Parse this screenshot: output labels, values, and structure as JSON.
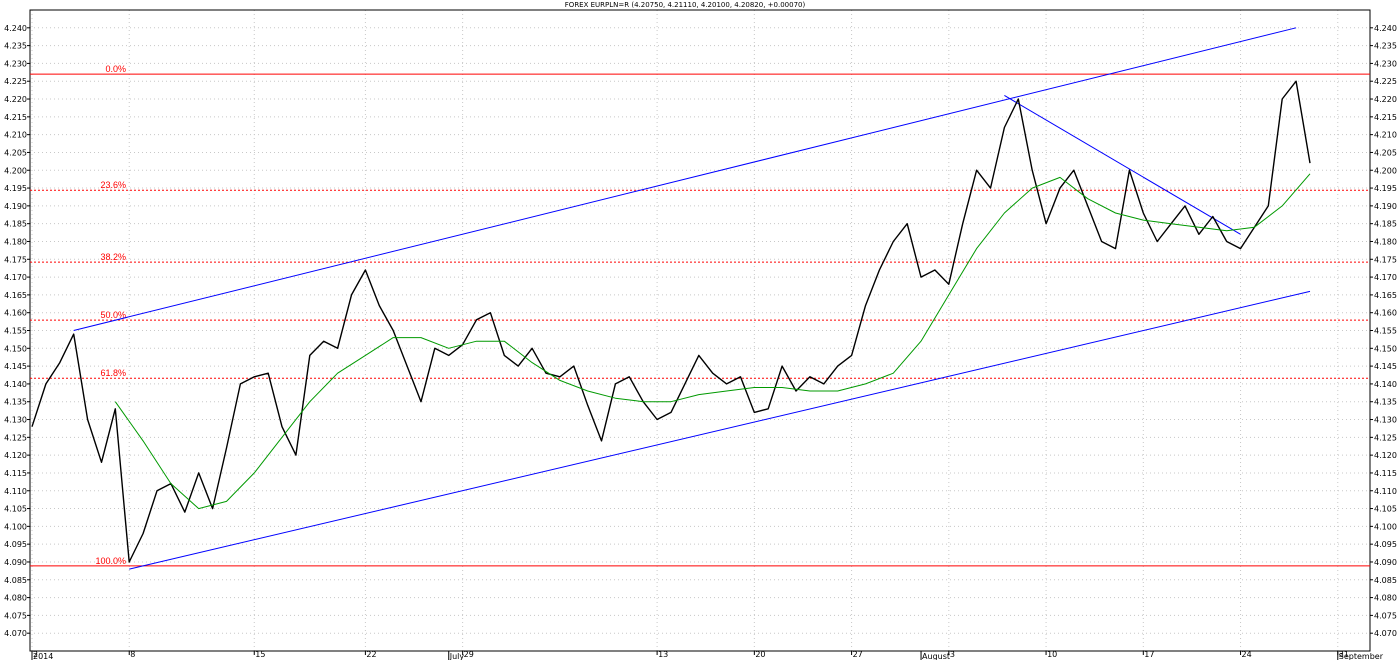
{
  "chart_data": {
    "type": "line",
    "title": "FOREX EURPLN=R (4.20750, 4.21110, 4.20100, 4.20820, +0.00070)",
    "ylim": [
      4.065,
      4.245
    ],
    "yticks": [
      "4.070",
      "4.075",
      "4.080",
      "4.085",
      "4.090",
      "4.095",
      "4.100",
      "4.105",
      "4.110",
      "4.115",
      "4.120",
      "4.125",
      "4.130",
      "4.135",
      "4.140",
      "4.145",
      "4.150",
      "4.155",
      "4.160",
      "4.165",
      "4.170",
      "4.175",
      "4.180",
      "4.185",
      "4.190",
      "4.195",
      "4.200",
      "4.205",
      "4.210",
      "4.215",
      "4.220",
      "4.225",
      "4.230",
      "4.235",
      "4.240"
    ],
    "xlim": [
      0,
      92
    ],
    "xticks": [
      {
        "x": 0,
        "label": "2"
      },
      {
        "x": 7,
        "label": "8"
      },
      {
        "x": 16,
        "label": "15"
      },
      {
        "x": 24,
        "label": "22"
      },
      {
        "x": 31,
        "label": "29"
      },
      {
        "x": 45,
        "label": "13"
      },
      {
        "x": 52,
        "label": "20"
      },
      {
        "x": 59,
        "label": "27"
      },
      {
        "x": 66,
        "label": "3"
      },
      {
        "x": 73,
        "label": "10"
      },
      {
        "x": 80,
        "label": "17"
      },
      {
        "x": 87,
        "label": "24"
      },
      {
        "x": 94,
        "label": "31"
      }
    ],
    "xlabels_secondary": [
      {
        "x": 0,
        "label": "2014"
      },
      {
        "x": 30,
        "label": "July"
      },
      {
        "x": 64,
        "label": "August"
      },
      {
        "x": 94,
        "label": "September"
      }
    ],
    "grid": true,
    "series": [
      {
        "color": "#000000",
        "x": [
          0,
          1,
          2,
          3,
          4,
          5,
          6,
          7,
          8,
          9,
          10,
          11,
          12,
          13,
          14,
          15,
          16,
          17,
          18,
          19,
          20,
          21,
          22,
          23,
          24,
          25,
          26,
          27,
          28,
          29,
          30,
          31,
          32,
          33,
          34,
          35,
          36,
          37,
          38,
          39,
          40,
          41,
          42,
          43,
          44,
          45,
          46,
          47,
          48,
          49,
          50,
          51,
          52,
          53,
          54,
          55,
          56,
          57,
          58,
          59,
          60,
          61,
          62,
          63,
          64,
          65,
          66,
          67,
          68,
          69,
          70,
          71,
          72,
          73,
          74,
          75,
          76,
          77,
          78,
          79,
          80,
          81,
          82,
          83,
          84,
          85,
          86,
          87,
          88,
          89,
          90,
          91,
          92
        ],
        "y": [
          4.128,
          4.14,
          4.146,
          4.154,
          4.13,
          4.118,
          4.133,
          4.09,
          4.098,
          4.11,
          4.112,
          4.104,
          4.115,
          4.105,
          4.122,
          4.14,
          4.142,
          4.143,
          4.128,
          4.12,
          4.148,
          4.152,
          4.15,
          4.165,
          4.172,
          4.162,
          4.155,
          4.145,
          4.135,
          4.15,
          4.148,
          4.151,
          4.158,
          4.16,
          4.148,
          4.145,
          4.15,
          4.143,
          4.142,
          4.145,
          4.134,
          4.124,
          4.14,
          4.142,
          4.135,
          4.13,
          4.132,
          4.14,
          4.148,
          4.143,
          4.14,
          4.142,
          4.132,
          4.133,
          4.145,
          4.138,
          4.142,
          4.14,
          4.145,
          4.148,
          4.162,
          4.172,
          4.18,
          4.185,
          4.17,
          4.172,
          4.168,
          4.185,
          4.2,
          4.195,
          4.212,
          4.22,
          4.2,
          4.185,
          4.195,
          4.2,
          4.19,
          4.18,
          4.178,
          4.2,
          4.188,
          4.18,
          4.185,
          4.19,
          4.182,
          4.187,
          4.18,
          4.178,
          4.184,
          4.19,
          4.22,
          4.225,
          4.202
        ]
      },
      {
        "color": "#009900",
        "x": [
          6,
          8,
          10,
          12,
          14,
          16,
          18,
          20,
          22,
          24,
          26,
          28,
          30,
          32,
          34,
          36,
          38,
          40,
          42,
          44,
          46,
          48,
          50,
          52,
          54,
          56,
          58,
          60,
          62,
          64,
          66,
          68,
          70,
          72,
          74,
          76,
          78,
          80,
          82,
          84,
          86,
          88,
          90,
          92
        ],
        "y": [
          4.135,
          4.124,
          4.112,
          4.105,
          4.107,
          4.115,
          4.125,
          4.135,
          4.143,
          4.148,
          4.153,
          4.153,
          4.15,
          4.152,
          4.152,
          4.146,
          4.141,
          4.138,
          4.136,
          4.135,
          4.135,
          4.137,
          4.138,
          4.139,
          4.139,
          4.138,
          4.138,
          4.14,
          4.143,
          4.152,
          4.165,
          4.178,
          4.188,
          4.195,
          4.198,
          4.192,
          4.188,
          4.186,
          4.185,
          4.184,
          4.183,
          4.184,
          4.19,
          4.199
        ]
      }
    ],
    "trendlines": [
      {
        "color": "#0000ff",
        "from": [
          3,
          4.155
        ],
        "to": [
          91,
          4.24
        ]
      },
      {
        "color": "#0000ff",
        "from": [
          7,
          4.088
        ],
        "to": [
          92,
          4.166
        ]
      },
      {
        "color": "#0000ff",
        "from": [
          70,
          4.221
        ],
        "to": [
          87,
          4.182
        ]
      }
    ],
    "fibonacci": {
      "color": "#ff0000",
      "levels": [
        {
          "label": "0.0%",
          "value": 4.227
        },
        {
          "label": "23.6%",
          "value": 4.1944
        },
        {
          "label": "38.2%",
          "value": 4.1742
        },
        {
          "label": "50.0%",
          "value": 4.1579
        },
        {
          "label": "61.8%",
          "value": 4.1416
        },
        {
          "label": "100.0%",
          "value": 4.0889
        }
      ]
    }
  }
}
